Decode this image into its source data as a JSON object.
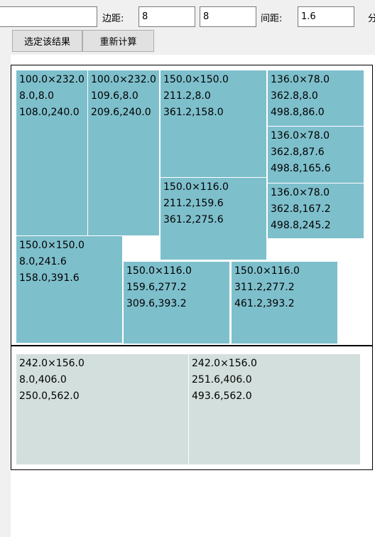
{
  "toolbar": {
    "first_field_value": "",
    "margin_label": "边距:",
    "margin_x": "8",
    "margin_y": "8",
    "spacing_label": "间距:",
    "spacing_value": "1.6",
    "cut_label": "分",
    "select_button": "选定该结果",
    "recalc_button": "重新计算"
  },
  "colors": {
    "sheet1_fill": "#7ebfcc",
    "sheet2_fill": "#d3dfdc"
  },
  "sheets": [
    {
      "pieces": [
        {
          "size": "100.0×232.0",
          "start": "8.0,8.0",
          "end": "108.0,240.0"
        },
        {
          "size": "100.0×232.0",
          "start": "109.6,8.0",
          "end": "209.6,240.0"
        },
        {
          "size": "150.0×150.0",
          "start": "211.2,8.0",
          "end": "361.2,158.0"
        },
        {
          "size": "136.0×78.0",
          "start": "362.8,8.0",
          "end": "498.8,86.0"
        },
        {
          "size": "136.0×78.0",
          "start": "362.8,87.6",
          "end": "498.8,165.6"
        },
        {
          "size": "150.0×116.0",
          "start": "211.2,159.6",
          "end": "361.2,275.6"
        },
        {
          "size": "136.0×78.0",
          "start": "362.8,167.2",
          "end": "498.8,245.2"
        },
        {
          "size": "150.0×150.0",
          "start": "8.0,241.6",
          "end": "158.0,391.6"
        },
        {
          "size": "150.0×116.0",
          "start": "159.6,277.2",
          "end": "309.6,393.2"
        },
        {
          "size": "150.0×116.0",
          "start": "311.2,277.2",
          "end": "461.2,393.2"
        }
      ]
    },
    {
      "pieces": [
        {
          "size": "242.0×156.0",
          "start": "8.0,406.0",
          "end": "250.0,562.0"
        },
        {
          "size": "242.0×156.0",
          "start": "251.6,406.0",
          "end": "493.6,562.0"
        }
      ]
    }
  ]
}
